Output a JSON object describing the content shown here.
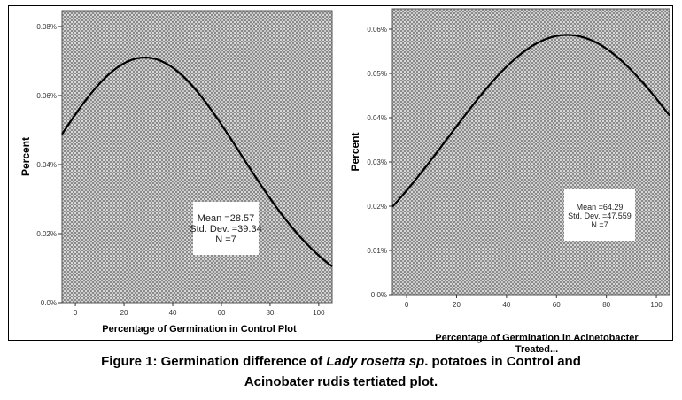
{
  "chart_data": [
    {
      "type": "line",
      "curve": "normal",
      "title": "",
      "xlabel": "Percentage of Germination in Control Plot",
      "xlabel2": "",
      "ylabel": "Percent",
      "xlim": [
        -5.5,
        105.5
      ],
      "ylim": [
        0,
        0.0846
      ],
      "xticks": [
        0,
        20,
        40,
        60,
        80,
        100
      ],
      "xtick_labels": [
        "0",
        "20",
        "40",
        "60",
        "80",
        "100"
      ],
      "yticks": [
        0,
        0.02,
        0.04,
        0.06,
        0.08
      ],
      "ytick_labels": [
        "0.0%",
        "0.02%",
        "0.04%",
        "0.06%",
        "0.08%"
      ],
      "mean": 28.57,
      "sd": 39.34,
      "peak": 0.071,
      "stats": [
        "Mean =28.57",
        "Std. Dev. =39.34",
        "N =7"
      ]
    },
    {
      "type": "line",
      "curve": "normal",
      "title": "",
      "xlabel": "Percentage of Germination in Acinetobacter",
      "xlabel2": "Treated...",
      "ylabel": "Percent",
      "xlim": [
        -5.7,
        105.3
      ],
      "ylim": [
        0,
        0.0646
      ],
      "xticks": [
        0,
        20,
        40,
        60,
        80,
        100
      ],
      "xtick_labels": [
        "0",
        "20",
        "40",
        "60",
        "80",
        "100"
      ],
      "yticks": [
        0,
        0.01,
        0.02,
        0.03,
        0.04,
        0.05,
        0.06
      ],
      "ytick_labels": [
        "0.0%",
        "0.01%",
        "0.02%",
        "0.03%",
        "0.04%",
        "0.05%",
        "0.06%"
      ],
      "mean": 64.29,
      "sd": 47.559,
      "peak": 0.0587,
      "stats": [
        "Mean =64.29",
        "Std. Dev. =47.559",
        "N =7"
      ]
    }
  ],
  "caption": {
    "line1_a": "Figure 1: Germination difference of ",
    "line1_italic": "Lady rosetta sp",
    "line1_b": ". potatoes in Control and",
    "line2": "Acinobater rudis tertiated plot."
  }
}
